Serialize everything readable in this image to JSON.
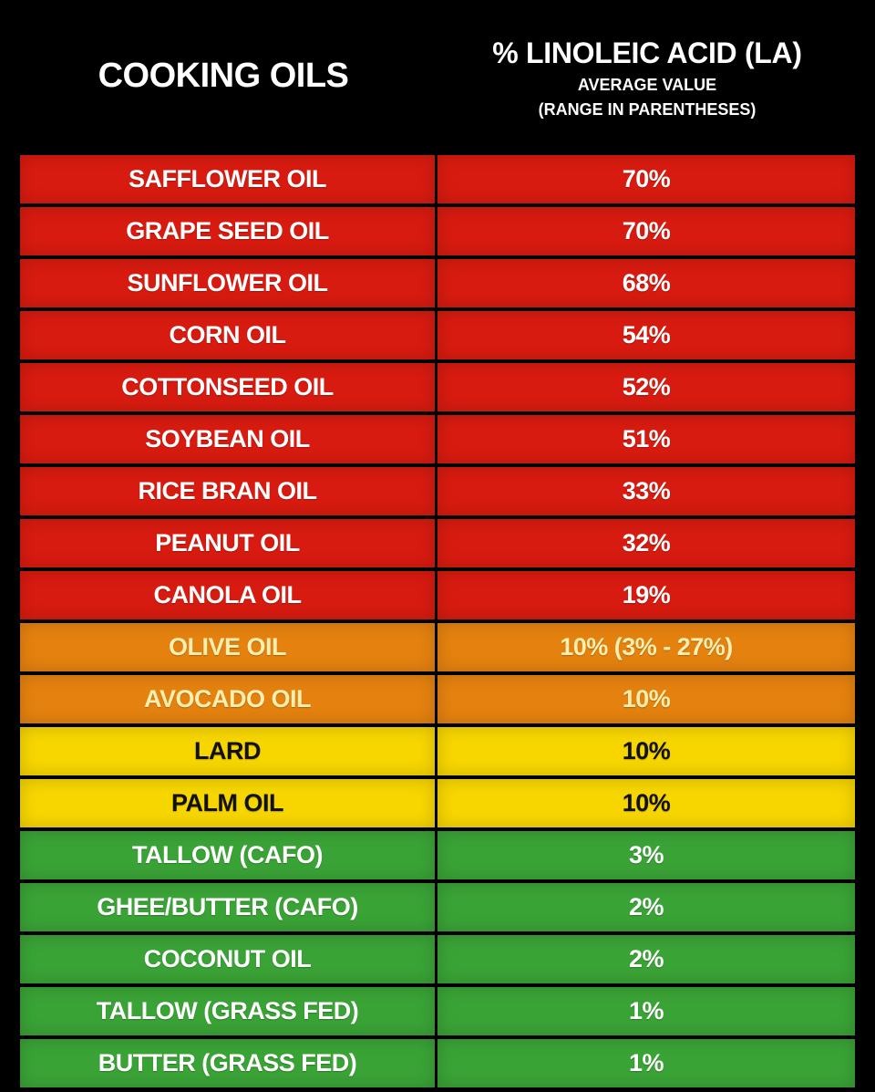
{
  "header": {
    "left_title": "COOKING OILS",
    "right_title": "% LINOLEIC ACID (LA)",
    "right_subtitle": [
      "AVERAGE VALUE",
      "(RANGE IN PARENTHESES)"
    ]
  },
  "table": {
    "rows": [
      [
        "SAFFLOWER OIL",
        "70%"
      ],
      [
        "GRAPE SEED OIL",
        "70%"
      ],
      [
        "SUNFLOWER OIL",
        "68%"
      ],
      [
        "CORN OIL",
        "54%"
      ],
      [
        "COTTONSEED OIL",
        "52%"
      ],
      [
        "SOYBEAN OIL",
        "51%"
      ],
      [
        "RICE BRAN OIL",
        "33%"
      ],
      [
        "PEANUT OIL",
        "32%"
      ],
      [
        "CANOLA OIL",
        "19%"
      ],
      [
        "OLIVE OIL",
        "10% (3% - 27%)"
      ],
      [
        "AVOCADO OIL",
        "10%"
      ],
      [
        "LARD",
        "10%"
      ],
      [
        "PALM OIL",
        "10%"
      ],
      [
        "TALLOW (CAFO)",
        "3%"
      ],
      [
        "GHEE/BUTTER (CAFO)",
        "2%"
      ],
      [
        "COCONUT OIL",
        "2%"
      ],
      [
        "TALLOW (GRASS FED)",
        "1%"
      ],
      [
        "BUTTER (GRASS FED)",
        "1%"
      ]
    ],
    "row_colors": [
      "#d81b10",
      "#d81b10",
      "#d81b10",
      "#d81b10",
      "#d81b10",
      "#d81b10",
      "#d81b10",
      "#d81b10",
      "#d81b10",
      "#e5820f",
      "#e5820f",
      "#f7d600",
      "#f7d600",
      "#3aa336",
      "#3aa336",
      "#3aa336",
      "#3aa336",
      "#3aa336"
    ],
    "text_colors": [
      "#ffffff",
      "#ffffff",
      "#ffffff",
      "#ffffff",
      "#ffffff",
      "#ffffff",
      "#ffffff",
      "#ffffff",
      "#ffffff",
      "#fbefb0",
      "#fbefb0",
      "#111111",
      "#111111",
      "#ffffff",
      "#ffffff",
      "#ffffff",
      "#ffffff",
      "#ffffff"
    ]
  }
}
